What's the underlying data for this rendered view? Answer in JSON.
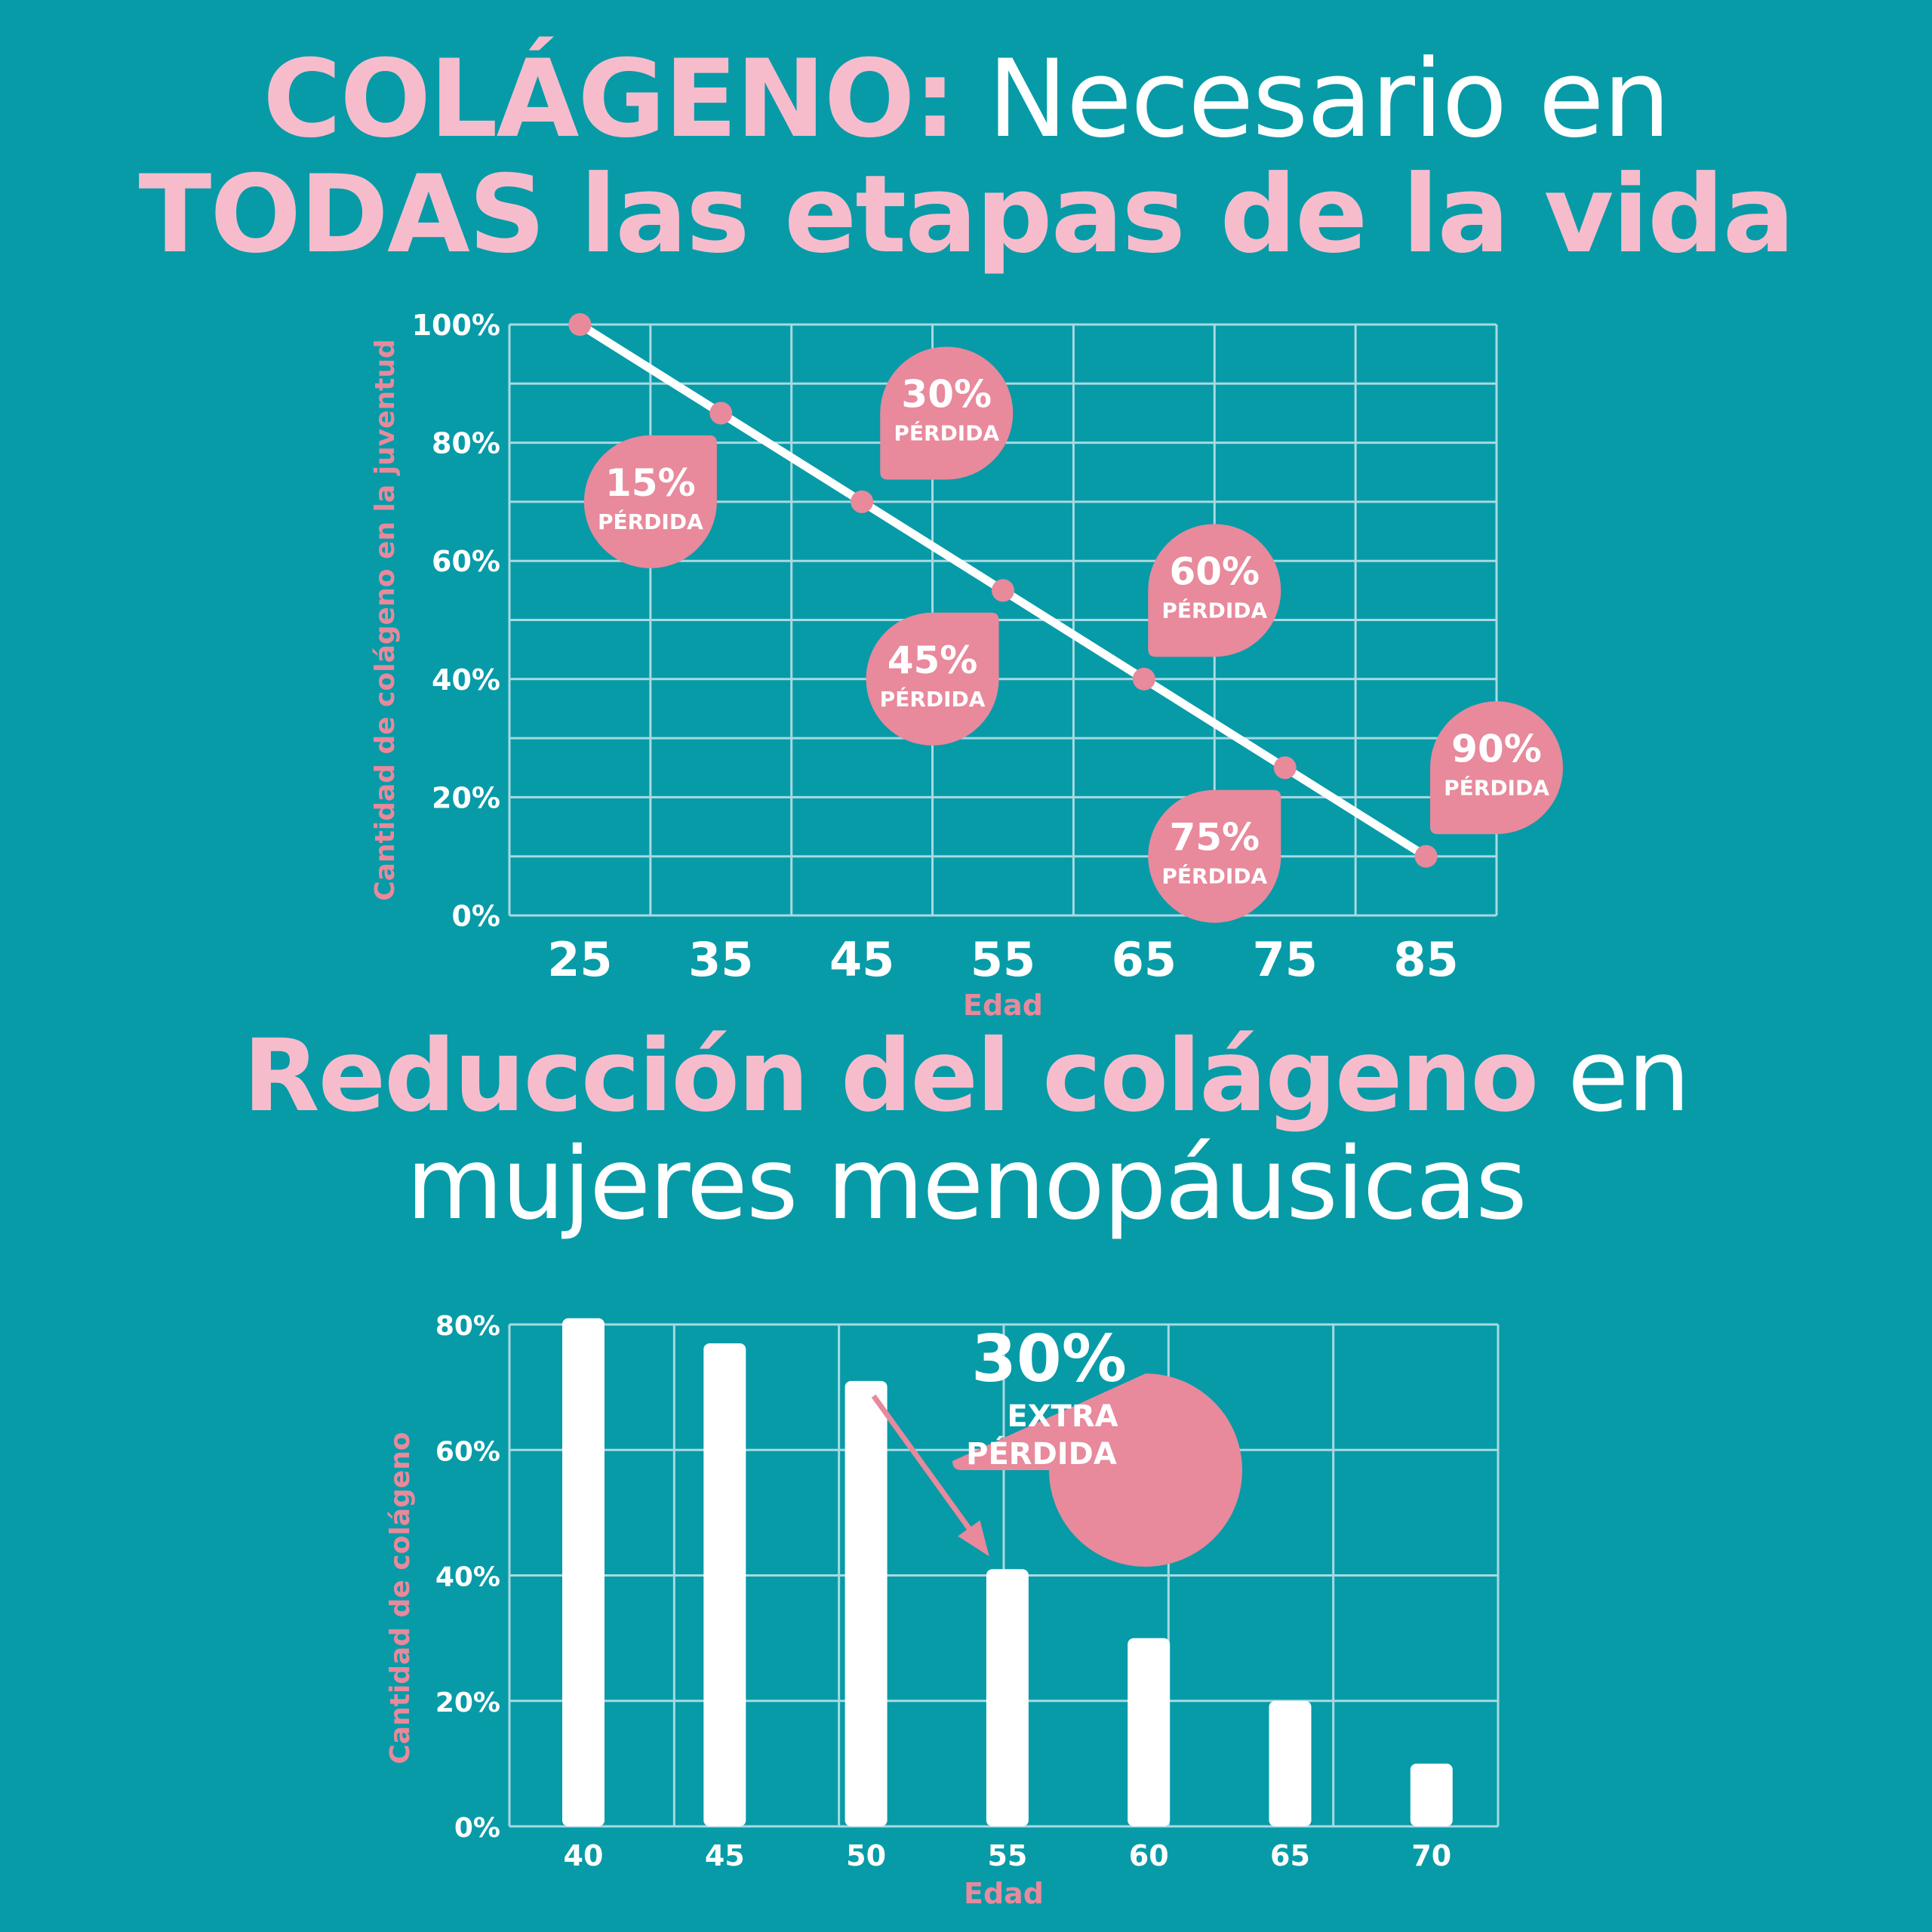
{
  "titles": {
    "top_pink": "COLÁGENO:",
    "top_white": " Necesario en",
    "top_line2": "TODAS las etapas de la vida",
    "bottom_pink": "Reducción del colágeno",
    "bottom_white": " en",
    "bottom_line2": "mujeres menopáusicas"
  },
  "colors": {
    "background": "#079ba8",
    "accent_pink": "#e8899c",
    "title_pink": "#f6bccc",
    "white": "#ffffff"
  },
  "chart_data": [
    {
      "type": "line",
      "xlabel": "Edad",
      "ylabel": "Cantidad de colágeno en la juventud",
      "x": [
        25,
        35,
        45,
        55,
        65,
        75,
        85
      ],
      "values": [
        100,
        85,
        70,
        55,
        40,
        25,
        10
      ],
      "ylim": [
        0,
        100
      ],
      "yticks": [
        "0%",
        "20%",
        "40%",
        "60%",
        "80%",
        "100%"
      ],
      "grid": true,
      "annotations": [
        {
          "x": 30,
          "y": 70,
          "pct": "15%",
          "sub": "PÉRDIDA",
          "tail": "top-right"
        },
        {
          "x": 51,
          "y": 85,
          "pct": "30%",
          "sub": "PÉRDIDA",
          "tail": "bottom-left"
        },
        {
          "x": 50,
          "y": 40,
          "pct": "45%",
          "sub": "PÉRDIDA",
          "tail": "top-right"
        },
        {
          "x": 70,
          "y": 55,
          "pct": "60%",
          "sub": "PÉRDIDA",
          "tail": "bottom-left"
        },
        {
          "x": 70,
          "y": 10,
          "pct": "75%",
          "sub": "PÉRDIDA",
          "tail": "top-right"
        },
        {
          "x": 90,
          "y": 25,
          "pct": "90%",
          "sub": "PÉRDIDA",
          "tail": "bottom-left"
        }
      ]
    },
    {
      "type": "bar",
      "xlabel": "Edad",
      "ylabel": "Cantidad de colágeno",
      "categories": [
        "40",
        "45",
        "50",
        "55",
        "60",
        "65",
        "70"
      ],
      "values": [
        81,
        77,
        71,
        41,
        30,
        20,
        10
      ],
      "ylim": [
        0,
        80
      ],
      "yticks": [
        "0%",
        "20%",
        "40%",
        "60%",
        "80%"
      ],
      "grid": true,
      "callout": {
        "pct": "30%",
        "line1": "EXTRA",
        "line2": "PÉRDIDA",
        "from": "50",
        "to": "55"
      }
    }
  ]
}
